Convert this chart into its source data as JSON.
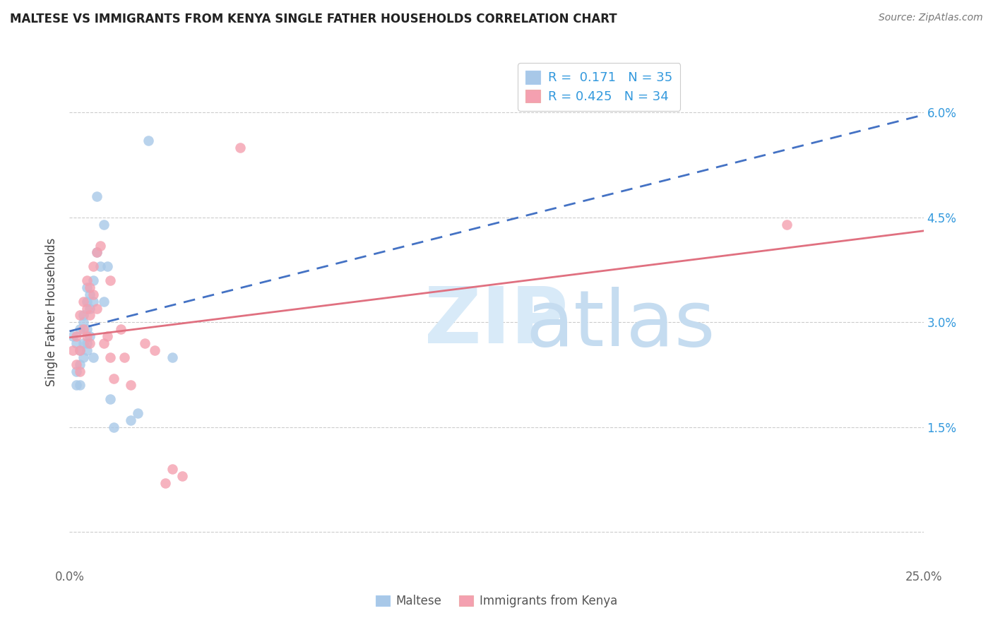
{
  "title": "MALTESE VS IMMIGRANTS FROM KENYA SINGLE FATHER HOUSEHOLDS CORRELATION CHART",
  "source": "Source: ZipAtlas.com",
  "ylabel": "Single Father Households",
  "xlim": [
    0.0,
    0.25
  ],
  "ylim": [
    -0.005,
    0.068
  ],
  "xticks": [
    0.0,
    0.05,
    0.1,
    0.15,
    0.2,
    0.25
  ],
  "xticklabels": [
    "0.0%",
    "",
    "",
    "",
    "",
    "25.0%"
  ],
  "yticks": [
    0.0,
    0.015,
    0.03,
    0.045,
    0.06
  ],
  "yticklabels": [
    "",
    "1.5%",
    "3.0%",
    "4.5%",
    "6.0%"
  ],
  "color_blue": "#A8C8E8",
  "color_pink": "#F4A0B0",
  "color_blue_line": "#4472C4",
  "color_pink_line": "#E07080",
  "maltese_x": [
    0.001,
    0.002,
    0.002,
    0.002,
    0.003,
    0.003,
    0.003,
    0.003,
    0.004,
    0.004,
    0.004,
    0.004,
    0.005,
    0.005,
    0.005,
    0.005,
    0.005,
    0.006,
    0.006,
    0.006,
    0.007,
    0.007,
    0.007,
    0.008,
    0.008,
    0.009,
    0.01,
    0.01,
    0.011,
    0.012,
    0.013,
    0.018,
    0.02,
    0.023,
    0.03
  ],
  "maltese_y": [
    0.028,
    0.027,
    0.023,
    0.021,
    0.029,
    0.026,
    0.024,
    0.021,
    0.031,
    0.03,
    0.027,
    0.025,
    0.035,
    0.033,
    0.029,
    0.027,
    0.026,
    0.034,
    0.032,
    0.028,
    0.036,
    0.033,
    0.025,
    0.048,
    0.04,
    0.038,
    0.044,
    0.033,
    0.038,
    0.019,
    0.015,
    0.016,
    0.017,
    0.056,
    0.025
  ],
  "kenya_x": [
    0.001,
    0.002,
    0.002,
    0.003,
    0.003,
    0.003,
    0.004,
    0.004,
    0.005,
    0.005,
    0.005,
    0.006,
    0.006,
    0.006,
    0.007,
    0.007,
    0.008,
    0.008,
    0.009,
    0.01,
    0.011,
    0.012,
    0.012,
    0.013,
    0.015,
    0.016,
    0.018,
    0.022,
    0.025,
    0.028,
    0.03,
    0.033,
    0.05,
    0.21
  ],
  "kenya_y": [
    0.026,
    0.028,
    0.024,
    0.031,
    0.026,
    0.023,
    0.033,
    0.029,
    0.036,
    0.032,
    0.028,
    0.035,
    0.031,
    0.027,
    0.038,
    0.034,
    0.04,
    0.032,
    0.041,
    0.027,
    0.028,
    0.036,
    0.025,
    0.022,
    0.029,
    0.025,
    0.021,
    0.027,
    0.026,
    0.007,
    0.009,
    0.008,
    0.055,
    0.044
  ]
}
